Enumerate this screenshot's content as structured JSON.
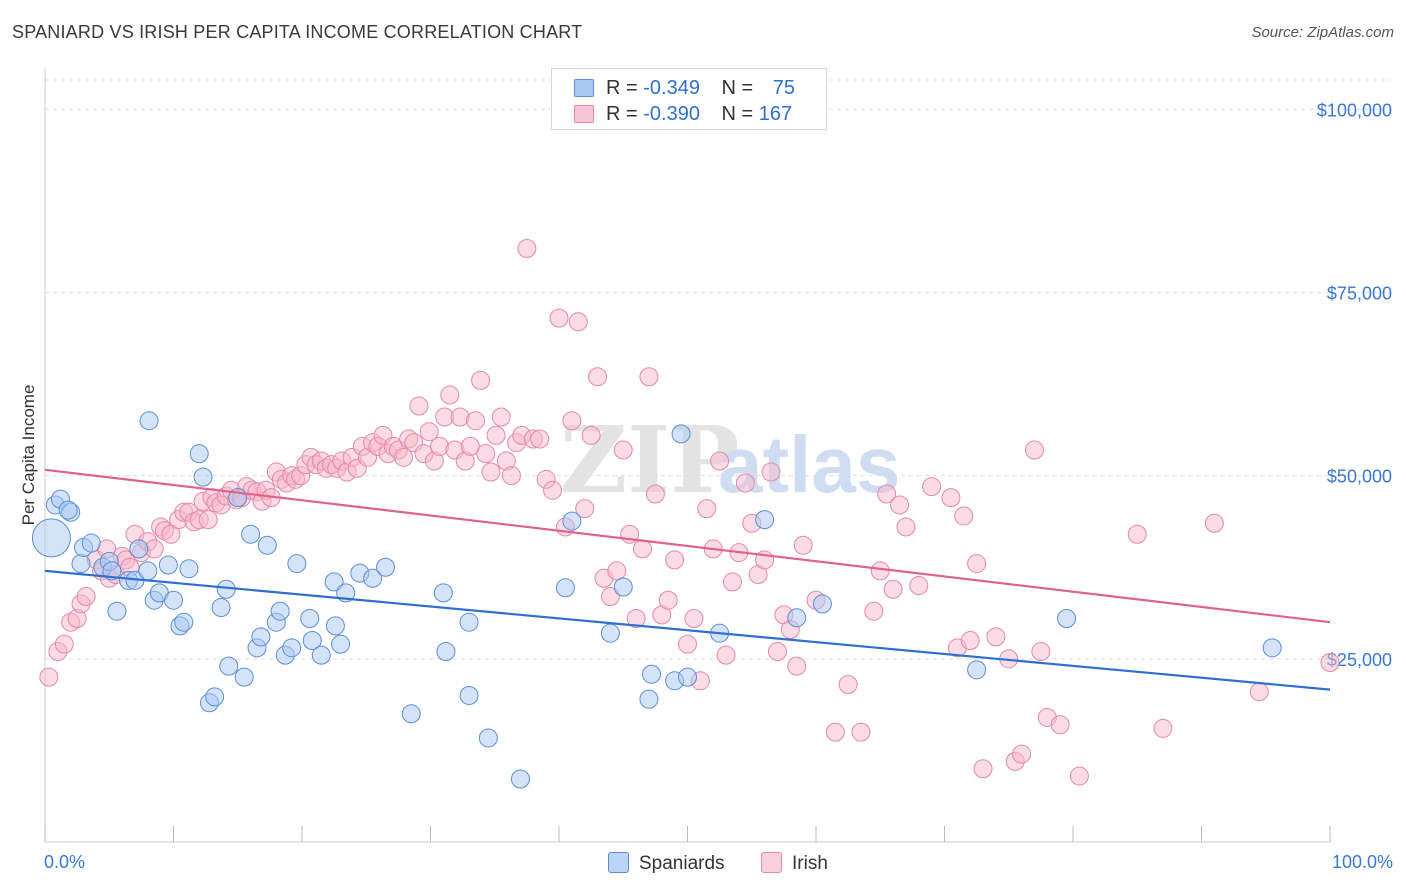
{
  "title": "SPANIARD VS IRISH PER CAPITA INCOME CORRELATION CHART",
  "source": "Source: ZipAtlas.com",
  "watermark": {
    "zip": "ZIP",
    "atlas": "atlas"
  },
  "legend": {
    "rows": [
      {
        "r_label": "R =",
        "r_value": "-0.349",
        "n_label": "N =",
        "n_value": "75"
      },
      {
        "r_label": "R =",
        "r_value": "-0.390",
        "n_label": "N =",
        "n_value": "167"
      }
    ]
  },
  "bottom_legend": [
    "Spaniards",
    "Irish"
  ],
  "x_axis": {
    "min_label": "0.0%",
    "max_label": "100.0%"
  },
  "colors": {
    "blue_fill": "#a9c8f2",
    "blue_stroke": "#5b8fd6",
    "blue_line": "#2f6fd0",
    "pink_fill": "#f7b8cc",
    "pink_stroke": "#e58aa7",
    "pink_line": "#e0628b",
    "axis_label": "#3a78d4",
    "grid": "#dddddd"
  },
  "chart_data": {
    "type": "scatter",
    "title": "SPANIARD VS IRISH PER CAPITA INCOME CORRELATION CHART",
    "xlabel": "",
    "ylabel": "Per Capita Income",
    "xlim": [
      0,
      100
    ],
    "ylim": [
      0,
      104000
    ],
    "y_ticks": [
      25000,
      50000,
      75000,
      100000
    ],
    "y_tick_labels": [
      "$25,000",
      "$50,000",
      "$75,000",
      "$100,000"
    ],
    "series": [
      {
        "name": "Spaniards",
        "r": -0.349,
        "n": 75,
        "trend": [
          [
            0,
            37000
          ],
          [
            100,
            20800
          ]
        ],
        "points": [
          [
            0.5,
            41500
          ],
          [
            0.8,
            46000
          ],
          [
            1.2,
            46800
          ],
          [
            2.0,
            45000
          ],
          [
            1.8,
            45300
          ],
          [
            2.8,
            38000
          ],
          [
            3.0,
            40200
          ],
          [
            3.6,
            40800
          ],
          [
            4.5,
            37500
          ],
          [
            5.0,
            38300
          ],
          [
            5.2,
            37000
          ],
          [
            5.6,
            31500
          ],
          [
            6.5,
            35700
          ],
          [
            7.0,
            35700
          ],
          [
            7.3,
            40000
          ],
          [
            8.0,
            37000
          ],
          [
            8.1,
            57500
          ],
          [
            8.5,
            33000
          ],
          [
            8.9,
            34000
          ],
          [
            9.6,
            37800
          ],
          [
            10.0,
            33000
          ],
          [
            10.5,
            29500
          ],
          [
            10.8,
            30000
          ],
          [
            11.2,
            37300
          ],
          [
            12.0,
            53000
          ],
          [
            12.3,
            49800
          ],
          [
            12.8,
            19000
          ],
          [
            13.2,
            19800
          ],
          [
            13.7,
            32000
          ],
          [
            14.1,
            34500
          ],
          [
            14.3,
            24000
          ],
          [
            15.0,
            47000
          ],
          [
            15.5,
            22500
          ],
          [
            16.0,
            42000
          ],
          [
            16.5,
            26500
          ],
          [
            16.8,
            28000
          ],
          [
            17.3,
            40500
          ],
          [
            18.0,
            30000
          ],
          [
            18.3,
            31500
          ],
          [
            18.7,
            25500
          ],
          [
            19.2,
            26500
          ],
          [
            19.6,
            38000
          ],
          [
            20.6,
            30500
          ],
          [
            20.8,
            27500
          ],
          [
            21.5,
            25500
          ],
          [
            22.5,
            35500
          ],
          [
            22.6,
            29500
          ],
          [
            23.0,
            27000
          ],
          [
            23.4,
            34000
          ],
          [
            24.5,
            36700
          ],
          [
            25.5,
            36000
          ],
          [
            26.5,
            37500
          ],
          [
            28.5,
            17500
          ],
          [
            31.0,
            34000
          ],
          [
            31.2,
            26000
          ],
          [
            33.0,
            30000
          ],
          [
            33.0,
            20000
          ],
          [
            34.5,
            14200
          ],
          [
            37.0,
            8600
          ],
          [
            40.5,
            34700
          ],
          [
            41.0,
            43800
          ],
          [
            44.0,
            28500
          ],
          [
            45.0,
            34800
          ],
          [
            47.0,
            19500
          ],
          [
            47.2,
            22900
          ],
          [
            49.0,
            22000
          ],
          [
            49.5,
            55700
          ],
          [
            50.0,
            22500
          ],
          [
            52.5,
            28500
          ],
          [
            56.0,
            44000
          ],
          [
            58.5,
            30600
          ],
          [
            60.5,
            32500
          ],
          [
            72.5,
            23500
          ],
          [
            79.5,
            30500
          ],
          [
            95.5,
            26500
          ]
        ]
      },
      {
        "name": "Irish",
        "r": -0.39,
        "n": 167,
        "trend": [
          [
            0,
            50800
          ],
          [
            100,
            30000
          ]
        ],
        "points": [
          [
            0.3,
            22500
          ],
          [
            1.0,
            26000
          ],
          [
            1.5,
            27000
          ],
          [
            2.0,
            30000
          ],
          [
            2.5,
            30500
          ],
          [
            2.8,
            32500
          ],
          [
            3.2,
            33500
          ],
          [
            4.0,
            38500
          ],
          [
            4.4,
            37000
          ],
          [
            4.8,
            40000
          ],
          [
            5.0,
            36000
          ],
          [
            5.5,
            36500
          ],
          [
            6.0,
            39000
          ],
          [
            6.3,
            38500
          ],
          [
            6.6,
            37500
          ],
          [
            7.0,
            42000
          ],
          [
            7.5,
            39500
          ],
          [
            8.0,
            41000
          ],
          [
            8.5,
            40000
          ],
          [
            9.0,
            43000
          ],
          [
            9.3,
            42500
          ],
          [
            9.8,
            42000
          ],
          [
            10.4,
            44000
          ],
          [
            10.8,
            45000
          ],
          [
            11.2,
            45000
          ],
          [
            11.6,
            43700
          ],
          [
            12.0,
            44000
          ],
          [
            12.3,
            46500
          ],
          [
            12.7,
            44000
          ],
          [
            13.0,
            47000
          ],
          [
            13.3,
            46300
          ],
          [
            13.7,
            46000
          ],
          [
            14.1,
            47200
          ],
          [
            14.5,
            48000
          ],
          [
            14.9,
            46700
          ],
          [
            15.3,
            47000
          ],
          [
            15.7,
            48500
          ],
          [
            16.1,
            48000
          ],
          [
            16.5,
            47800
          ],
          [
            16.9,
            46500
          ],
          [
            17.2,
            48000
          ],
          [
            17.6,
            47000
          ],
          [
            18.0,
            50500
          ],
          [
            18.4,
            49500
          ],
          [
            18.8,
            49000
          ],
          [
            19.2,
            50000
          ],
          [
            19.5,
            49500
          ],
          [
            19.9,
            50000
          ],
          [
            20.3,
            51500
          ],
          [
            20.7,
            52500
          ],
          [
            21.1,
            51500
          ],
          [
            21.5,
            52000
          ],
          [
            21.9,
            51000
          ],
          [
            22.3,
            51500
          ],
          [
            22.7,
            51000
          ],
          [
            23.1,
            52000
          ],
          [
            23.5,
            50500
          ],
          [
            23.9,
            52500
          ],
          [
            24.3,
            51000
          ],
          [
            24.7,
            54000
          ],
          [
            25.1,
            52500
          ],
          [
            25.5,
            54500
          ],
          [
            25.9,
            54000
          ],
          [
            26.3,
            55500
          ],
          [
            26.7,
            53000
          ],
          [
            27.1,
            54000
          ],
          [
            27.5,
            53500
          ],
          [
            27.9,
            52500
          ],
          [
            28.3,
            55000
          ],
          [
            28.7,
            54500
          ],
          [
            29.1,
            59500
          ],
          [
            29.5,
            53000
          ],
          [
            29.9,
            56000
          ],
          [
            30.3,
            52000
          ],
          [
            30.7,
            54000
          ],
          [
            31.1,
            58000
          ],
          [
            31.5,
            61000
          ],
          [
            31.9,
            53500
          ],
          [
            32.3,
            58000
          ],
          [
            32.7,
            52000
          ],
          [
            33.1,
            54000
          ],
          [
            33.5,
            57500
          ],
          [
            33.9,
            63000
          ],
          [
            34.3,
            53000
          ],
          [
            34.7,
            50500
          ],
          [
            35.1,
            55500
          ],
          [
            35.5,
            58000
          ],
          [
            35.9,
            52000
          ],
          [
            36.3,
            50000
          ],
          [
            36.7,
            54500
          ],
          [
            37.1,
            55500
          ],
          [
            37.5,
            81000
          ],
          [
            38.0,
            55000
          ],
          [
            38.5,
            55000
          ],
          [
            39.0,
            49500
          ],
          [
            39.5,
            48000
          ],
          [
            40.0,
            71500
          ],
          [
            40.5,
            43000
          ],
          [
            41.0,
            57500
          ],
          [
            41.5,
            71000
          ],
          [
            42.0,
            45500
          ],
          [
            42.5,
            55500
          ],
          [
            43.0,
            63500
          ],
          [
            43.5,
            36000
          ],
          [
            44.0,
            33500
          ],
          [
            44.5,
            37000
          ],
          [
            45.0,
            53500
          ],
          [
            45.5,
            42000
          ],
          [
            46.0,
            30500
          ],
          [
            46.5,
            40000
          ],
          [
            47.0,
            63500
          ],
          [
            47.5,
            47500
          ],
          [
            48.0,
            31000
          ],
          [
            48.5,
            33000
          ],
          [
            49.0,
            38500
          ],
          [
            50.0,
            27000
          ],
          [
            50.5,
            30500
          ],
          [
            51.0,
            22000
          ],
          [
            51.5,
            45500
          ],
          [
            52.0,
            40000
          ],
          [
            52.5,
            52000
          ],
          [
            53.0,
            25500
          ],
          [
            53.5,
            35500
          ],
          [
            54.0,
            39500
          ],
          [
            54.5,
            49000
          ],
          [
            55.0,
            43500
          ],
          [
            55.5,
            36500
          ],
          [
            56.0,
            38500
          ],
          [
            56.5,
            50500
          ],
          [
            57.0,
            26000
          ],
          [
            57.5,
            31000
          ],
          [
            58.0,
            29000
          ],
          [
            58.5,
            24000
          ],
          [
            59.0,
            40500
          ],
          [
            60.0,
            33000
          ],
          [
            61.5,
            15000
          ],
          [
            62.5,
            21500
          ],
          [
            63.5,
            15000
          ],
          [
            64.5,
            31500
          ],
          [
            65.0,
            37000
          ],
          [
            65.5,
            47500
          ],
          [
            66.0,
            34500
          ],
          [
            66.5,
            46000
          ],
          [
            67.0,
            43000
          ],
          [
            68.0,
            35000
          ],
          [
            69.0,
            48500
          ],
          [
            70.5,
            47000
          ],
          [
            71.0,
            26500
          ],
          [
            71.5,
            44500
          ],
          [
            72.0,
            27500
          ],
          [
            72.5,
            38000
          ],
          [
            73.0,
            10000
          ],
          [
            74.0,
            28000
          ],
          [
            75.0,
            25000
          ],
          [
            75.5,
            11000
          ],
          [
            76.0,
            12000
          ],
          [
            77.0,
            53500
          ],
          [
            77.5,
            26000
          ],
          [
            78.0,
            17000
          ],
          [
            79.0,
            16000
          ],
          [
            80.5,
            9000
          ],
          [
            85.0,
            42000
          ],
          [
            87.0,
            15500
          ],
          [
            91.0,
            43500
          ],
          [
            94.5,
            20500
          ],
          [
            100.0,
            24500
          ]
        ]
      }
    ]
  }
}
